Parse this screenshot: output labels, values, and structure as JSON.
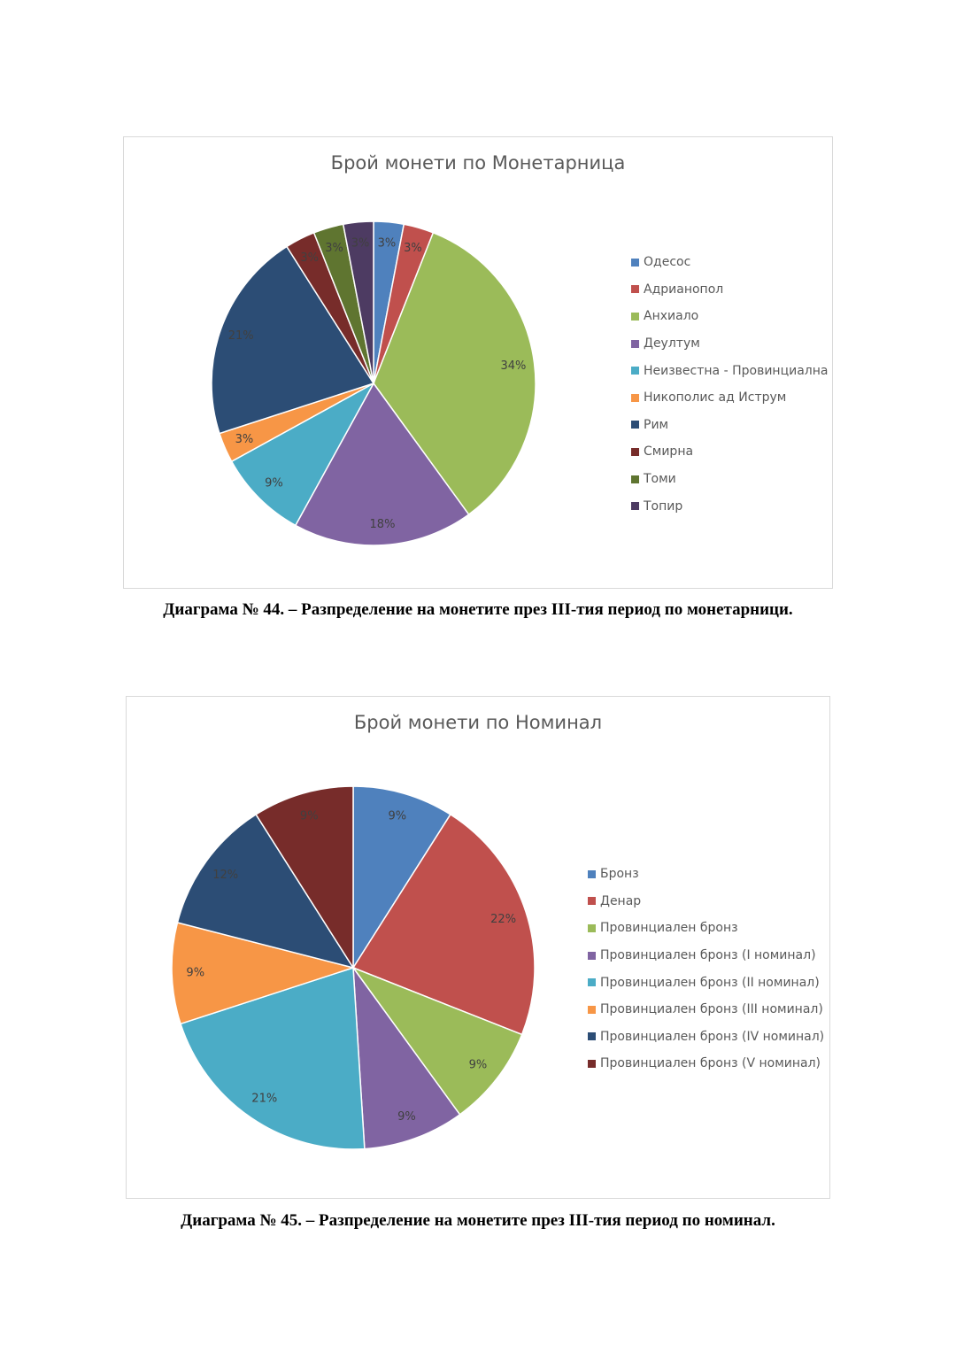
{
  "chart_data": [
    {
      "type": "pie",
      "title": "Брой монети по Монетарница",
      "categories": [
        "Одесос",
        "Адрианопол",
        "Анхиало",
        "Деултум",
        "Неизвестна - Провинциална",
        "Никополис ад Иструм",
        "Рим",
        "Смирна",
        "Томи",
        "Топир"
      ],
      "values": [
        3,
        3,
        34,
        18,
        9,
        3,
        21,
        3,
        3,
        3
      ],
      "labels": [
        "3%",
        "3%",
        "34%",
        "18%",
        "9%",
        "3%",
        "21%",
        "3%",
        "3%",
        "3%"
      ],
      "colors": [
        "#4f81bd",
        "#c0504d",
        "#9bbb59",
        "#8064a2",
        "#4bacc6",
        "#f79646",
        "#2c4d75",
        "#772c2a",
        "#5f7530",
        "#4d3b62"
      ],
      "legend": "right"
    },
    {
      "type": "pie",
      "title": "Брой монети по Номинал",
      "categories": [
        "Бронз",
        "Денар",
        "Провинциален бронз",
        "Провинциален бронз (I номинал)",
        "Провинциален бронз (II номинал)",
        "Провинциален бронз (III номинал)",
        "Провинциален бронз (IV номинал)",
        "Провинциален бронз (V номинал)"
      ],
      "values": [
        9,
        22,
        9,
        9,
        21,
        9,
        12,
        9
      ],
      "labels": [
        "9%",
        "22%",
        "9%",
        "9%",
        "21%",
        "9%",
        "12%",
        "9%"
      ],
      "colors": [
        "#4f81bd",
        "#c0504d",
        "#9bbb59",
        "#8064a2",
        "#4bacc6",
        "#f79646",
        "#2c4d75",
        "#772c2a"
      ],
      "legend": "right"
    }
  ],
  "captions": [
    "Диаграма № 44. – Разпределение на монетите през III-тия период по монетарници.",
    "Диаграма № 45. – Разпределение на монетите през III-тия период по номинал."
  ]
}
